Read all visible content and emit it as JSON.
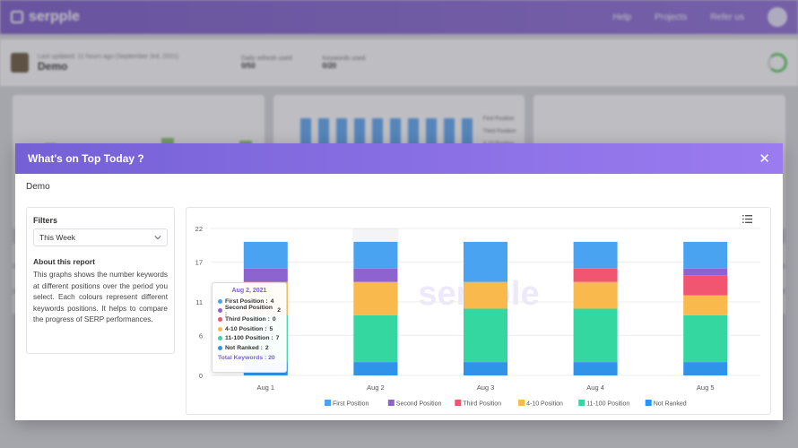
{
  "background": {
    "brand": "serpple",
    "nav": [
      "Help",
      "Projects",
      "Refer us"
    ],
    "project": {
      "title": "Demo",
      "subtitle": "Last updated: 11 hours ago (September 3rd, 2021)"
    },
    "stats": [
      {
        "label": "Daily refresh used",
        "value": "0/50"
      },
      {
        "label": "Keywords used",
        "value": "0/20"
      }
    ],
    "legend": [
      "First Position",
      "Third Position",
      "4-10 Position"
    ]
  },
  "modal": {
    "title": "What's on Top Today ?",
    "close_icon": "close-icon",
    "project_name": "Demo",
    "filters": {
      "title": "Filters",
      "period_selected": "This Week",
      "about_title": "About this report",
      "about_text": "This graphs shows the number keywords at different positions over the period you select. Each colours represent different keywords positions. It helps to compare the progress of SERP performances."
    },
    "watermark": "serpple"
  },
  "tooltip": {
    "title": "Aug 2, 2021",
    "rows": [
      {
        "label": "First Position :",
        "value": "4"
      },
      {
        "label": "Second Position :",
        "value": "2"
      },
      {
        "label": "Third Position :",
        "value": "0"
      },
      {
        "label": "4-10 Position :",
        "value": "5"
      },
      {
        "label": "11-100 Position :",
        "value": "7"
      },
      {
        "label": "Not Ranked :",
        "value": "2"
      }
    ],
    "total": "Total Keywords : 20"
  },
  "chart_data": {
    "type": "bar",
    "stacked": true,
    "categories": [
      "Aug 1",
      "Aug 2",
      "Aug 3",
      "Aug 4",
      "Aug 5"
    ],
    "ylim": [
      0,
      22
    ],
    "yticks": [
      0,
      6,
      11,
      17,
      22
    ],
    "series": [
      {
        "name": "Not Ranked",
        "color": "#2f93ea",
        "values": [
          2,
          2,
          2,
          2,
          2
        ]
      },
      {
        "name": "11-100 Position",
        "color": "#34d79f",
        "values": [
          7,
          7,
          8,
          8,
          7
        ]
      },
      {
        "name": "4-10 Position",
        "color": "#f9b94d",
        "values": [
          5,
          5,
          4,
          4,
          3
        ]
      },
      {
        "name": "Third Position",
        "color": "#f2556f",
        "values": [
          0,
          0,
          0,
          2,
          3
        ]
      },
      {
        "name": "Second Position",
        "color": "#8d64cf",
        "values": [
          2,
          2,
          0,
          0,
          1
        ]
      },
      {
        "name": "First Position",
        "color": "#49a3f0",
        "values": [
          4,
          4,
          6,
          4,
          4
        ]
      }
    ],
    "legend_order": [
      "First Position",
      "Second Position",
      "Third Position",
      "4-10 Position",
      "11-100 Position",
      "Not Ranked"
    ],
    "legend_position": "bottom"
  }
}
